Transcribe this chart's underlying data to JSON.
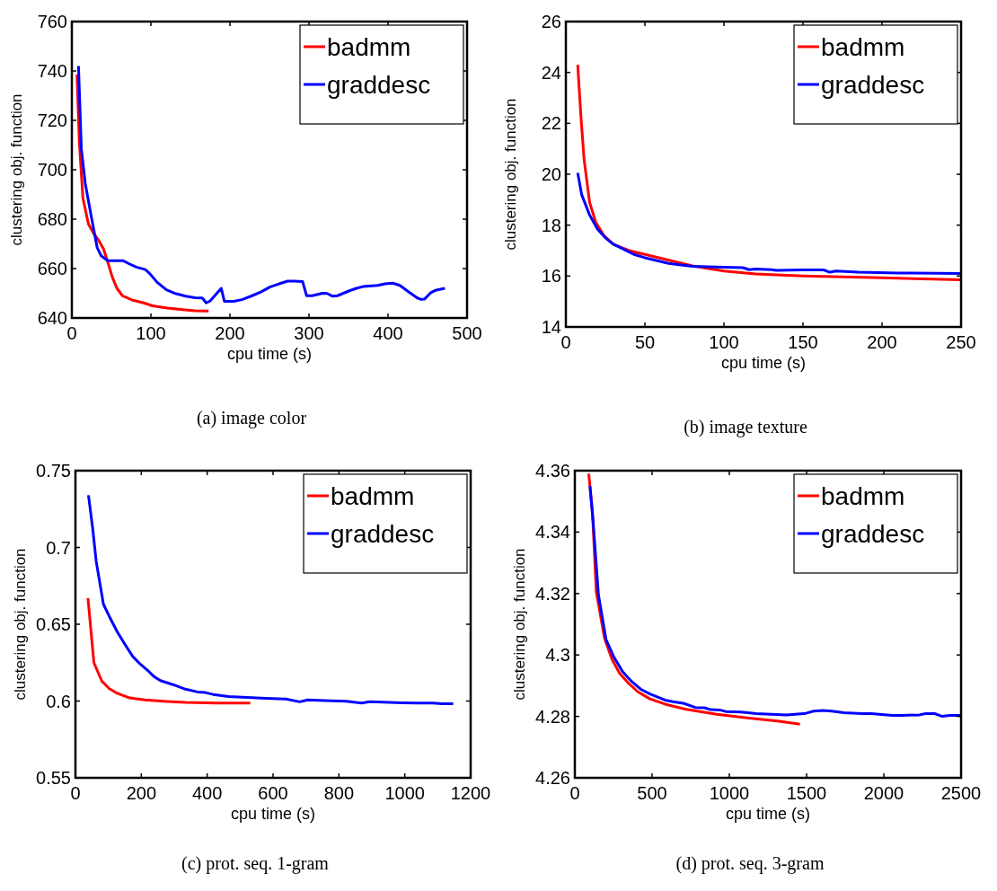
{
  "chart_data": [
    {
      "type": "line",
      "title": "(a) image color",
      "xlabel": "cpu time (s)",
      "ylabel": "clustering obj. function",
      "xlim": [
        0,
        500
      ],
      "xticks": [
        0,
        100,
        200,
        300,
        400,
        500
      ],
      "ylim": [
        640,
        760
      ],
      "yticks": [
        640,
        660,
        680,
        700,
        720,
        740,
        760
      ],
      "legend": "top right",
      "line_style": "solid",
      "series": [
        {
          "name": "badmm",
          "color": "#ff0000",
          "x": [
            6.5,
            9.5,
            14,
            21,
            28,
            34,
            40,
            45.5,
            51,
            57,
            64,
            76,
            91,
            102,
            121,
            140,
            156,
            173
          ],
          "values": [
            738.5,
            711,
            688.5,
            678,
            674,
            671.4,
            668,
            662.6,
            656.7,
            652,
            649,
            647.3,
            646.1,
            644.9,
            644,
            643.4,
            642.9,
            642.8
          ]
        },
        {
          "name": "graddesc",
          "color": "#0000ff",
          "x": [
            8.4,
            12,
            17,
            23,
            28.5,
            32,
            37,
            45.5,
            64.5,
            72,
            81.6,
            93,
            98.7,
            108,
            119.6,
            131,
            144,
            156,
            165,
            170,
            175,
            189,
            193,
            205,
            216,
            228,
            239,
            251,
            262,
            273,
            281,
            292,
            297,
            304,
            317,
            323,
            330,
            336,
            351,
            360,
            368,
            387,
            396,
            406,
            415,
            425,
            437,
            442,
            446,
            454,
            461,
            472
          ],
          "values": [
            742,
            708.5,
            694.4,
            683.8,
            674.4,
            668.5,
            665.2,
            663.2,
            663.2,
            662,
            660.6,
            659.6,
            657.9,
            654.4,
            651.4,
            649.9,
            648.8,
            648.2,
            648.1,
            646.1,
            646.9,
            652,
            646.7,
            646.7,
            647.5,
            649,
            650.5,
            652.6,
            653.8,
            654.9,
            654.9,
            654.7,
            649,
            649,
            650,
            649.9,
            648.8,
            649,
            651,
            652,
            652.7,
            653.2,
            653.8,
            654.1,
            653.2,
            650.8,
            648.1,
            647.5,
            647.6,
            650.2,
            651.3,
            652
          ]
        }
      ]
    },
    {
      "type": "line",
      "title": "(b) image texture",
      "xlabel": "cpu time (s)",
      "ylabel": "clustering obj. function",
      "xlim": [
        0,
        250
      ],
      "xticks": [
        0,
        50,
        100,
        150,
        200,
        250
      ],
      "ylim": [
        14,
        26
      ],
      "yticks": [
        14,
        16,
        18,
        20,
        22,
        24,
        26
      ],
      "legend": "top right",
      "line_style": "solid",
      "series": [
        {
          "name": "badmm",
          "color": "#ff0000",
          "x": [
            7.5,
            9.5,
            11.5,
            15,
            19,
            24,
            30,
            40,
            50,
            60,
            70,
            80,
            100,
            120,
            150,
            200,
            250
          ],
          "values": [
            24.3,
            22.3,
            20.6,
            18.9,
            18.1,
            17.6,
            17.25,
            17.0,
            16.85,
            16.7,
            16.55,
            16.4,
            16.2,
            16.08,
            16.0,
            15.93,
            15.85
          ]
        },
        {
          "name": "graddesc",
          "color": "#0000ff",
          "x": [
            7.5,
            10,
            15,
            20,
            25,
            30,
            35,
            43,
            50,
            65,
            80,
            100,
            112,
            116,
            120,
            130,
            133,
            150,
            163,
            167,
            171,
            185,
            210,
            250
          ],
          "values": [
            20.05,
            19.2,
            18.4,
            17.85,
            17.5,
            17.25,
            17.1,
            16.85,
            16.72,
            16.5,
            16.38,
            16.35,
            16.33,
            16.25,
            16.28,
            16.25,
            16.22,
            16.24,
            16.24,
            16.15,
            16.2,
            16.15,
            16.12,
            16.1
          ]
        }
      ]
    },
    {
      "type": "line",
      "title": "(c) prot. seq. 1-gram",
      "xlabel": "cpu time (s)",
      "ylabel": "clustering obj. function",
      "xlim": [
        0,
        1200
      ],
      "xticks": [
        0,
        200,
        400,
        600,
        800,
        1000,
        1200
      ],
      "ylim": [
        0.55,
        0.75
      ],
      "yticks": [
        0.55,
        0.6,
        0.65,
        0.7,
        0.75
      ],
      "legend": "top right",
      "line_style": "solid",
      "series": [
        {
          "name": "badmm",
          "color": "#ff0000",
          "x": [
            38,
            56,
            80,
            103,
            127,
            165,
            211,
            277,
            334,
            428,
            531
          ],
          "values": [
            0.667,
            0.625,
            0.613,
            0.608,
            0.605,
            0.602,
            0.6007,
            0.5997,
            0.5991,
            0.5987,
            0.5987
          ]
        },
        {
          "name": "graddesc",
          "color": "#0000ff",
          "x": [
            39.5,
            52,
            63,
            85,
            103,
            127,
            150,
            174,
            197,
            219,
            238,
            258,
            296,
            334,
            371,
            395,
            418,
            465,
            522,
            578,
            639,
            681,
            705,
            757,
            822,
            869,
            893,
            954,
            992,
            1039,
            1085,
            1113,
            1147
          ],
          "values": [
            0.734,
            0.713,
            0.691,
            0.663,
            0.655,
            0.645,
            0.637,
            0.629,
            0.624,
            0.62,
            0.616,
            0.6133,
            0.6107,
            0.6077,
            0.6059,
            0.6055,
            0.6043,
            0.6029,
            0.6023,
            0.6017,
            0.6013,
            0.5995,
            0.6007,
            0.6003,
            0.5999,
            0.5987,
            0.5995,
            0.5991,
            0.5989,
            0.5987,
            0.5987,
            0.5983,
            0.5983
          ]
        }
      ]
    },
    {
      "type": "line",
      "title": "(d) prot. seq. 3-gram",
      "xlabel": "cpu time (s)",
      "ylabel": "clustering obj. function",
      "xlim": [
        0,
        2500
      ],
      "xticks": [
        0,
        500,
        1000,
        1500,
        2000,
        2500
      ],
      "ylim": [
        4.26,
        4.36
      ],
      "yticks": [
        4.26,
        4.28,
        4.3,
        4.32,
        4.34,
        4.36
      ],
      "legend": "top right",
      "line_style": "solid",
      "series": [
        {
          "name": "badmm",
          "color": "#ff0000",
          "x": [
            90,
            114,
            139,
            192,
            241,
            290,
            349,
            408,
            486,
            584,
            722,
            918,
            1114,
            1310,
            1457
          ],
          "values": [
            4.359,
            4.3465,
            4.3205,
            4.3055,
            4.2985,
            4.294,
            4.2907,
            4.288,
            4.2857,
            4.284,
            4.2823,
            4.2807,
            4.2795,
            4.2785,
            4.2775
          ]
        },
        {
          "name": "graddesc",
          "color": "#0000ff",
          "x": [
            98,
            118,
            153,
            202,
            251,
            310,
            369,
            428,
            486,
            584,
            643,
            702,
            780,
            839,
            878,
            937,
            976,
            1075,
            1133,
            1173,
            1271,
            1369,
            1427,
            1496,
            1545,
            1604,
            1663,
            1741,
            1859,
            1918,
            2055,
            2114,
            2231,
            2271,
            2329,
            2378,
            2427,
            2500
          ],
          "values": [
            4.355,
            4.3435,
            4.3195,
            4.305,
            4.2995,
            4.2945,
            4.2913,
            4.2888,
            4.2873,
            4.2853,
            4.2847,
            4.2843,
            4.2829,
            4.2828,
            4.2822,
            4.2821,
            4.2816,
            4.2814,
            4.2811,
            4.2809,
            4.2807,
            4.2805,
            4.2807,
            4.281,
            4.2817,
            4.2819,
            4.2817,
            4.2812,
            4.2809,
            4.2809,
            4.2803,
            4.2803,
            4.2805,
            4.2809,
            4.2809,
            4.28,
            4.2803,
            4.2803
          ]
        }
      ]
    }
  ]
}
